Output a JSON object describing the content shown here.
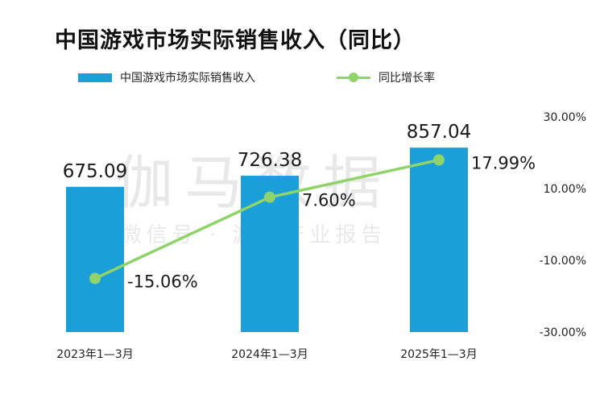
{
  "title": "中国游戏市场实际销售收入（同比）",
  "watermark": {
    "main": "伽马数据",
    "sub": "微信号 · 游戏产业报告"
  },
  "colors": {
    "bar": "#1b9fd8",
    "line": "#8fd36a"
  },
  "chart_data": {
    "type": "bar",
    "categories": [
      "2023年1—3月",
      "2024年1—3月",
      "2025年1—3月"
    ],
    "series": [
      {
        "name": "中国游戏市场实际销售收入",
        "type": "bar",
        "values": [
          675.09,
          726.38,
          857.04
        ],
        "labels": [
          "675.09",
          "726.38",
          "857.04"
        ]
      },
      {
        "name": "同比增长率",
        "type": "line",
        "axis": "right",
        "values": [
          -15.06,
          7.6,
          17.99
        ],
        "labels": [
          "-15.06%",
          "7.60%",
          "17.99%"
        ]
      }
    ],
    "left_axis": {
      "min": 0,
      "max": 1000
    },
    "right_axis": {
      "min": -30,
      "max": 30,
      "ticks": [
        30,
        10,
        -10,
        -30
      ],
      "tick_labels": [
        "30.00%",
        "10.00%",
        "-10.00%",
        "-30.00%"
      ]
    },
    "legend": "top",
    "grid": false
  }
}
